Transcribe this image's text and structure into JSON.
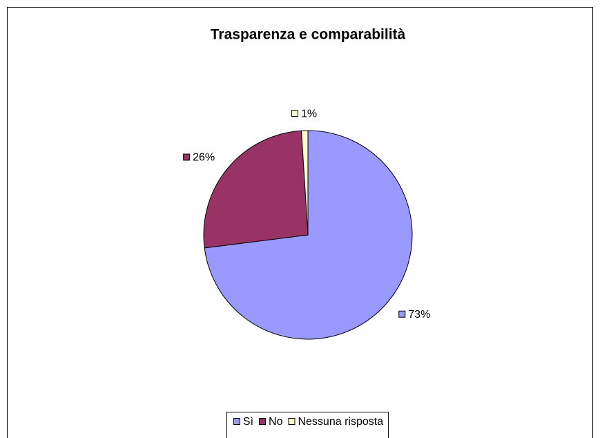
{
  "chart_data": {
    "type": "pie",
    "title": "Trasparenza e comparabilità",
    "categories": [
      "Sì",
      "No",
      "Nessuna risposta"
    ],
    "values": [
      73,
      26,
      1
    ],
    "value_labels": [
      "73%",
      "26%",
      "1%"
    ],
    "colors": [
      "#9999ff",
      "#993366",
      "#ffffcc"
    ],
    "legend": "bottom"
  }
}
